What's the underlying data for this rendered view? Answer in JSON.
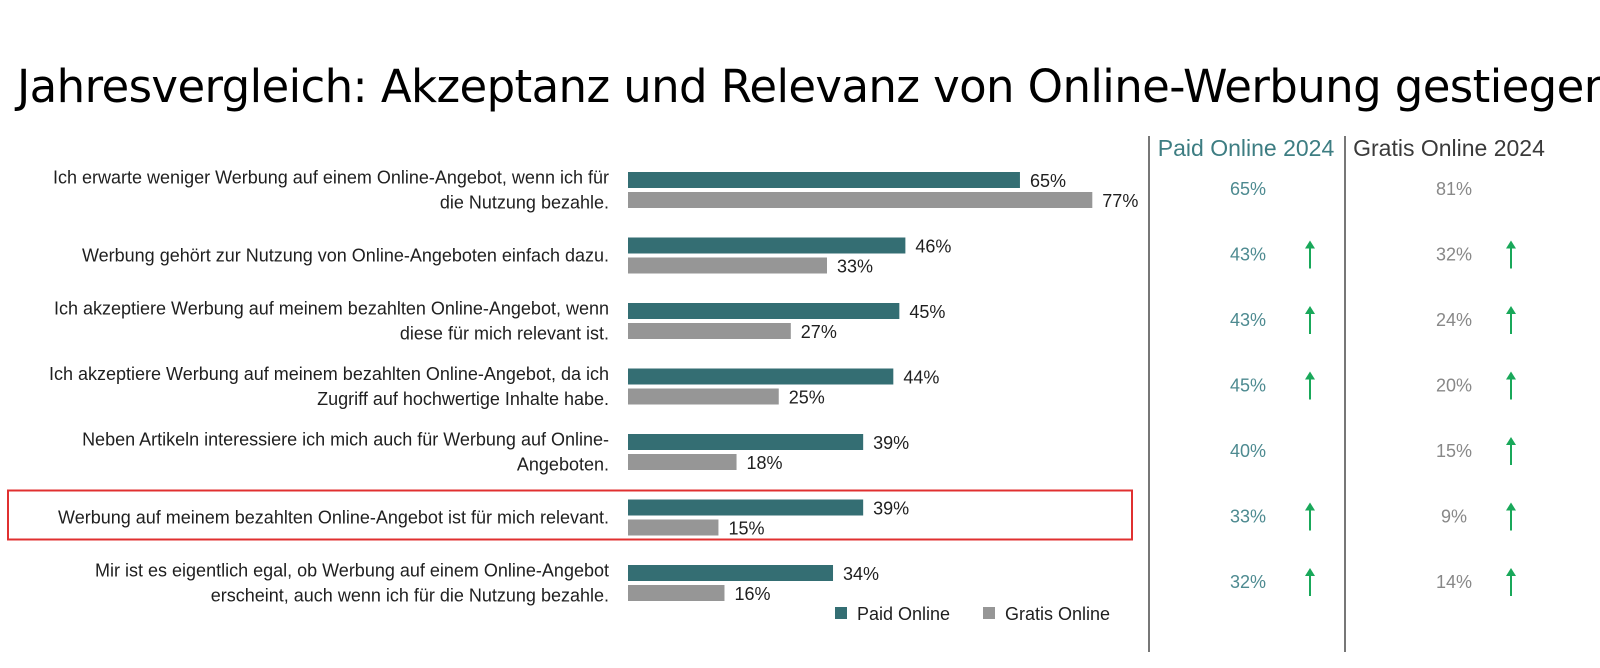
{
  "title": "Jahresvergleich: Akzeptanz und Relevanz von Online-Werbung gestiegen",
  "colors": {
    "paid": "#346e73",
    "gratis": "#969696",
    "highlight": "#e03030",
    "arrow": "#19a85a",
    "divider": "#777777",
    "paid_header": "#3d7d82",
    "gratis_header": "#3a3a3a",
    "paid_values": "#4d8a90",
    "gratis_values": "#888888"
  },
  "chart_data": {
    "type": "bar",
    "orientation": "horizontal",
    "categories": [
      [
        "Ich erwarte weniger Werbung auf einem Online-Angebot, wenn ich für",
        "die Nutzung bezahle."
      ],
      [
        "Werbung gehört zur Nutzung von Online-Angeboten einfach dazu."
      ],
      [
        "Ich akzeptiere Werbung auf meinem bezahlten Online-Angebot, wenn",
        "diese für mich relevant ist."
      ],
      [
        "Ich akzeptiere Werbung auf meinem bezahlten Online-Angebot, da ich",
        "Zugriff auf hochwertige Inhalte habe."
      ],
      [
        "Neben Artikeln interessiere ich mich auch für Werbung auf Online-",
        "Angeboten."
      ],
      [
        "Werbung auf meinem bezahlten Online-Angebot ist für mich relevant."
      ],
      [
        "Mir ist es eigentlich egal, ob Werbung auf einem Online-Angebot",
        "erscheint, auch wenn ich für die Nutzung bezahle."
      ]
    ],
    "series": [
      {
        "name": "Paid Online",
        "values": [
          65,
          46,
          45,
          44,
          39,
          39,
          34
        ]
      },
      {
        "name": "Gratis Online",
        "values": [
          77,
          33,
          27,
          25,
          18,
          15,
          16
        ]
      }
    ],
    "value_suffix": "%",
    "highlighted_index": 5,
    "legend_position": "bottom-right",
    "grid": false,
    "comparison_columns": [
      {
        "header": "Paid Online 2024",
        "values": [
          "65%",
          "43%",
          "43%",
          "45%",
          "40%",
          "33%",
          "32%"
        ],
        "arrow_up": [
          false,
          true,
          true,
          true,
          false,
          true,
          true
        ]
      },
      {
        "header": "Gratis Online 2024",
        "values": [
          "81%",
          "32%",
          "24%",
          "20%",
          "15%",
          "9%",
          "14%"
        ],
        "arrow_up": [
          false,
          true,
          true,
          true,
          true,
          true,
          true
        ]
      }
    ]
  }
}
